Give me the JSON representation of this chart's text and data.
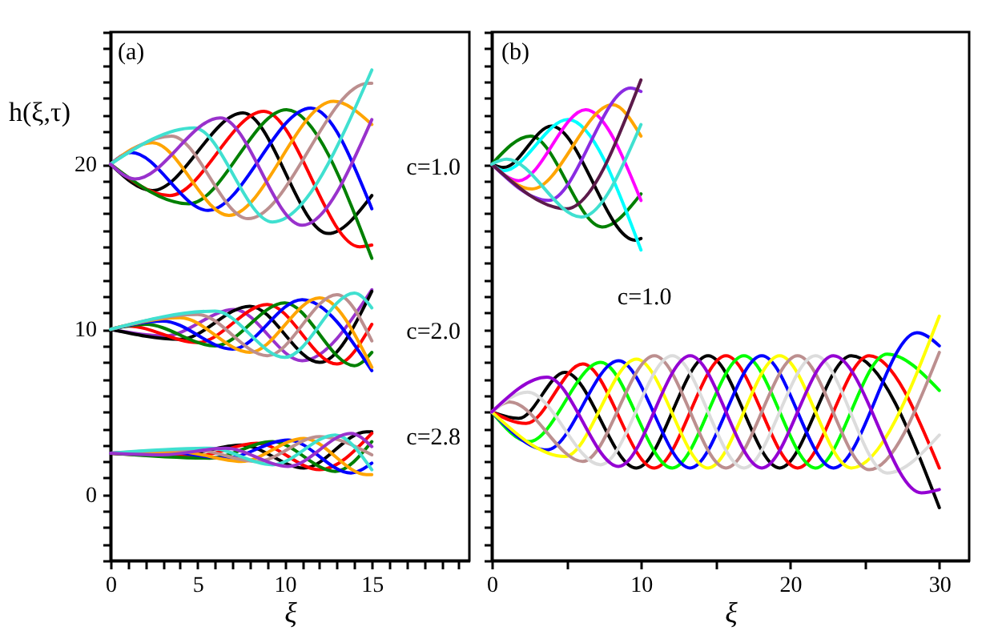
{
  "chart_data": [
    {
      "type": "line",
      "xlabel": "ξ",
      "ylabel": "h(ξ,τ)",
      "xlim": [
        0,
        20.6
      ],
      "ylim": [
        -4,
        28
      ],
      "xticks": [
        0,
        {
          "value": 1,
          "label": null
        },
        {
          "value": 2,
          "label": null
        },
        {
          "value": 3,
          "label": null
        },
        {
          "value": 4,
          "label": null
        },
        5,
        {
          "value": 6,
          "label": null
        },
        {
          "value": 7,
          "label": null
        },
        {
          "value": 8,
          "label": null
        },
        {
          "value": 9,
          "label": null
        },
        10,
        {
          "value": 11,
          "label": null
        },
        {
          "value": 12,
          "label": null
        },
        {
          "value": 13,
          "label": null
        },
        {
          "value": 14,
          "label": null
        },
        15,
        {
          "value": 16,
          "label": null
        },
        {
          "value": 17,
          "label": null
        },
        {
          "value": 18,
          "label": null
        },
        {
          "value": 19,
          "label": null
        },
        {
          "value": 20,
          "label": null
        }
      ],
      "yticks": [
        {
          "value": -4,
          "label": null
        },
        {
          "value": -3,
          "label": null
        },
        {
          "value": -2,
          "label": null
        },
        {
          "value": -1,
          "label": null
        },
        0,
        {
          "value": 1,
          "label": null
        },
        {
          "value": 2,
          "label": null
        },
        {
          "value": 3,
          "label": null
        },
        {
          "value": 4,
          "label": null
        },
        {
          "value": 5,
          "label": null
        },
        {
          "value": 6,
          "label": null
        },
        {
          "value": 7,
          "label": null
        },
        {
          "value": 8,
          "label": null
        },
        {
          "value": 9,
          "label": null
        },
        10,
        {
          "value": 11,
          "label": null
        },
        {
          "value": 12,
          "label": null
        },
        {
          "value": 13,
          "label": null
        },
        {
          "value": 14,
          "label": null
        },
        {
          "value": 15,
          "label": null
        },
        {
          "value": 16,
          "label": null
        },
        {
          "value": 17,
          "label": null
        },
        {
          "value": 18,
          "label": null
        },
        {
          "value": 19,
          "label": null
        },
        20,
        {
          "value": 21,
          "label": null
        },
        {
          "value": 22,
          "label": null
        },
        {
          "value": 23,
          "label": null
        },
        {
          "value": 24,
          "label": null
        },
        {
          "value": 25,
          "label": null
        },
        {
          "value": 26,
          "label": null
        },
        {
          "value": 27,
          "label": null
        },
        {
          "value": 28,
          "label": null
        }
      ],
      "annotations": [
        "(a)",
        "c=1.0",
        "c=2.0",
        "c=2.8"
      ],
      "series": [
        {
          "color": "#000000",
          "x": [
            0,
            2.4,
            7.6,
            12.5,
            15
          ],
          "values": [
            20,
            18.4,
            23.1,
            15.8,
            18.1
          ]
        },
        {
          "color": "#ff0000",
          "x": [
            0,
            3.4,
            8.8,
            14.3,
            15
          ],
          "values": [
            20,
            18.1,
            23.2,
            15.0,
            15.1
          ]
        },
        {
          "color": "#008000",
          "x": [
            0,
            4.5,
            10.1,
            15
          ],
          "values": [
            20,
            17.6,
            23.3,
            14.3
          ]
        },
        {
          "color": "#0000ff",
          "x": [
            0,
            1.2,
            5.6,
            11.5,
            15
          ],
          "values": [
            20,
            20.7,
            17.2,
            23.4,
            17.3
          ]
        },
        {
          "color": "#ffa500",
          "x": [
            0,
            2.4,
            6.8,
            12.8,
            15
          ],
          "values": [
            20,
            21.3,
            16.9,
            23.8,
            22.4
          ]
        },
        {
          "color": "#bc8f8f",
          "x": [
            0,
            3.5,
            7.9,
            14.8,
            15
          ],
          "values": [
            20,
            21.7,
            16.7,
            24.9,
            24.9
          ]
        },
        {
          "color": "#40e0d0",
          "x": [
            0,
            4.8,
            9.3,
            15
          ],
          "values": [
            20,
            22.2,
            16.5,
            25.7
          ]
        },
        {
          "color": "#9932cc",
          "x": [
            0,
            1.4,
            6.3,
            11.0,
            15
          ],
          "values": [
            20,
            19.1,
            22.8,
            16.3,
            22.7
          ]
        },
        {
          "color": "#9932cc",
          "x": [
            0,
            3.1,
            7.1,
            11,
            15
          ],
          "values": [
            10,
            9.6,
            11.2,
            8.1,
            12.4
          ]
        },
        {
          "color": "#000000",
          "x": [
            0,
            4,
            8,
            12,
            15
          ],
          "values": [
            10,
            9.4,
            11.4,
            8.0,
            12.3
          ]
        },
        {
          "color": "#ff0000",
          "x": [
            0,
            1,
            5,
            9,
            13,
            15
          ],
          "values": [
            10,
            10.2,
            9.2,
            11.5,
            7.9,
            10.3
          ]
        },
        {
          "color": "#008000",
          "x": [
            0,
            2,
            6,
            10,
            14,
            15
          ],
          "values": [
            10,
            10.3,
            9.0,
            11.6,
            7.8,
            8.6
          ]
        },
        {
          "color": "#0000ff",
          "x": [
            0,
            3,
            7,
            11,
            15
          ],
          "values": [
            10,
            10.5,
            8.8,
            11.8,
            7.5
          ]
        },
        {
          "color": "#ffa500",
          "x": [
            0,
            4,
            8,
            12,
            15
          ],
          "values": [
            10,
            10.7,
            8.6,
            11.9,
            7.7
          ]
        },
        {
          "color": "#bc8f8f",
          "x": [
            0,
            5,
            9,
            13,
            15
          ],
          "values": [
            10,
            10.9,
            8.4,
            12.1,
            9.3
          ]
        },
        {
          "color": "#40e0d0",
          "x": [
            0,
            6,
            10,
            14,
            15
          ],
          "values": [
            10,
            11.1,
            8.3,
            12.2,
            11.3
          ]
        },
        {
          "color": "#000000",
          "x": [
            0,
            3.9,
            7.5,
            11.1,
            14.7,
            15
          ],
          "values": [
            2.5,
            2.4,
            3.0,
            1.6,
            3.8,
            3.8
          ]
        },
        {
          "color": "#ff0000",
          "x": [
            0,
            4.8,
            8.4,
            12,
            15
          ],
          "values": [
            2.5,
            2.3,
            3.1,
            1.5,
            3.7
          ]
        },
        {
          "color": "#008000",
          "x": [
            0,
            5.7,
            9.3,
            12.9,
            15
          ],
          "values": [
            2.5,
            2.2,
            3.2,
            1.4,
            3.2
          ]
        },
        {
          "color": "#0000ff",
          "x": [
            0,
            3,
            6.6,
            10.2,
            13.8,
            15
          ],
          "values": [
            2.5,
            2.6,
            2.2,
            3.3,
            1.3,
            1.9
          ]
        },
        {
          "color": "#ffa500",
          "x": [
            0,
            3.9,
            7.5,
            11.1,
            14.7,
            15
          ],
          "values": [
            2.5,
            2.6,
            2.0,
            3.4,
            1.2,
            1.2
          ]
        },
        {
          "color": "#bc8f8f",
          "x": [
            0,
            4.8,
            8.4,
            12,
            15
          ],
          "values": [
            2.5,
            2.7,
            2.0,
            3.5,
            2.4
          ]
        },
        {
          "color": "#40e0d0",
          "x": [
            0,
            5.7,
            9.3,
            12.9,
            15
          ],
          "values": [
            2.5,
            2.8,
            1.8,
            3.6,
            1.5
          ]
        },
        {
          "color": "#9932cc",
          "x": [
            0,
            3,
            6.6,
            10.2,
            13.8,
            15
          ],
          "values": [
            2.5,
            2.4,
            2.8,
            1.7,
            3.7,
            2.9
          ]
        }
      ]
    },
    {
      "type": "line",
      "xlabel": "ξ",
      "xlim": [
        0,
        32
      ],
      "ylim": [
        -4,
        28
      ],
      "tick_labels": "x",
      "xticks": [
        0,
        {
          "value": 5,
          "label": null
        },
        10,
        {
          "value": 15,
          "label": null
        },
        20,
        {
          "value": 25,
          "label": null
        },
        30
      ],
      "yticks": [
        {
          "value": -4,
          "label": null
        },
        {
          "value": -3,
          "label": null
        },
        {
          "value": -2,
          "label": null
        },
        {
          "value": -1,
          "label": null
        },
        {
          "value": 0,
          "label": null
        },
        {
          "value": 1,
          "label": null
        },
        {
          "value": 2,
          "label": null
        },
        {
          "value": 3,
          "label": null
        },
        {
          "value": 4,
          "label": null
        },
        {
          "value": 5,
          "label": null
        },
        {
          "value": 6,
          "label": null
        },
        {
          "value": 7,
          "label": null
        },
        {
          "value": 8,
          "label": null
        },
        {
          "value": 9,
          "label": null
        },
        {
          "value": 10,
          "label": null
        },
        {
          "value": 11,
          "label": null
        },
        {
          "value": 12,
          "label": null
        },
        {
          "value": 13,
          "label": null
        },
        {
          "value": 14,
          "label": null
        },
        {
          "value": 15,
          "label": null
        },
        {
          "value": 16,
          "label": null
        },
        {
          "value": 17,
          "label": null
        },
        {
          "value": 18,
          "label": null
        },
        {
          "value": 19,
          "label": null
        },
        {
          "value": 20,
          "label": null
        },
        {
          "value": 21,
          "label": null
        },
        {
          "value": 22,
          "label": null
        },
        {
          "value": 23,
          "label": null
        },
        {
          "value": 24,
          "label": null
        },
        {
          "value": 25,
          "label": null
        },
        {
          "value": 26,
          "label": null
        },
        {
          "value": 27,
          "label": null
        },
        {
          "value": 28,
          "label": null
        }
      ],
      "annotations": [
        "(b)",
        "c=1.0"
      ],
      "series": [
        {
          "color": "#008000",
          "x": [
            0,
            2.6,
            7.4,
            10
          ],
          "values": [
            20,
            21.7,
            16.2,
            18.2
          ]
        },
        {
          "color": "#000000",
          "x": [
            0,
            0.8,
            4.0,
            9.6,
            10
          ],
          "values": [
            20,
            19.8,
            22.3,
            15.4,
            15.5
          ]
        },
        {
          "color": "#00ffff",
          "x": [
            0,
            0.8,
            5.1,
            10
          ],
          "values": [
            20,
            19.6,
            22.7,
            14.8
          ]
        },
        {
          "color": "#ff00ff",
          "x": [
            0,
            1.8,
            6.3,
            10
          ],
          "values": [
            20,
            19.0,
            23.3,
            17.8
          ]
        },
        {
          "color": "#ffa500",
          "x": [
            0,
            2.7,
            8.1,
            10
          ],
          "values": [
            20,
            18.5,
            23.6,
            21.7
          ]
        },
        {
          "color": "#8a2be2",
          "x": [
            0,
            3.8,
            9.3,
            10
          ],
          "values": [
            20,
            17.8,
            24.6,
            24.4
          ]
        },
        {
          "color": "#5c1a4a",
          "x": [
            0,
            5.0,
            10
          ],
          "values": [
            20,
            17.3,
            25.1
          ]
        },
        {
          "color": "#40e0d0",
          "x": [
            0,
            1.0,
            6.0,
            10
          ],
          "values": [
            20,
            20.3,
            16.8,
            22.4
          ]
        },
        {
          "color": "#000000",
          "x": [
            0,
            1.8,
            4.9,
            9.7,
            14.5,
            19.3,
            24.1,
            30
          ],
          "values": [
            5,
            4.6,
            7.4,
            1.6,
            8.4,
            1.6,
            8.4,
            -0.8
          ]
        },
        {
          "color": "#ff0000",
          "x": [
            0,
            2.3,
            6.1,
            10.9,
            15.7,
            20.5,
            25.3,
            30
          ],
          "values": [
            5,
            4.3,
            7.9,
            1.6,
            8.4,
            1.6,
            8.4,
            1.6
          ]
        },
        {
          "color": "#00ff00",
          "x": [
            0,
            2.5,
            7.3,
            12.1,
            16.9,
            21.7,
            26.5,
            30
          ],
          "values": [
            5,
            3.2,
            8.0,
            1.6,
            8.4,
            1.6,
            8.5,
            6.3
          ]
        },
        {
          "color": "#0000ff",
          "x": [
            0,
            3.7,
            8.5,
            13.3,
            18.1,
            22.9,
            28.5,
            30
          ],
          "values": [
            5,
            2.7,
            8.1,
            1.6,
            8.4,
            1.6,
            9.8,
            9.0
          ]
        },
        {
          "color": "#ffff00",
          "x": [
            0,
            4.9,
            9.7,
            14.5,
            19.3,
            24.1,
            30
          ],
          "values": [
            5,
            2.3,
            8.2,
            1.6,
            8.4,
            1.6,
            10.8
          ]
        },
        {
          "color": "#bc8f8f",
          "x": [
            0,
            1.2,
            6.1,
            10.9,
            15.7,
            20.5,
            25.3,
            30
          ],
          "values": [
            5,
            5.6,
            2.0,
            8.4,
            1.6,
            8.4,
            1.5,
            8.6
          ]
        },
        {
          "color": "#dcdcdc",
          "x": [
            0,
            2.4,
            7.3,
            12.1,
            16.9,
            21.7,
            26.5,
            30
          ],
          "values": [
            5,
            6.2,
            1.8,
            8.4,
            1.6,
            8.4,
            1.3,
            3.6
          ]
        },
        {
          "color": "#9400d3",
          "x": [
            0,
            3.7,
            8.5,
            13.3,
            18.1,
            22.9,
            28.8,
            30
          ],
          "values": [
            5,
            7.1,
            1.7,
            8.4,
            1.6,
            8.4,
            0.1,
            0.3
          ]
        }
      ]
    }
  ]
}
